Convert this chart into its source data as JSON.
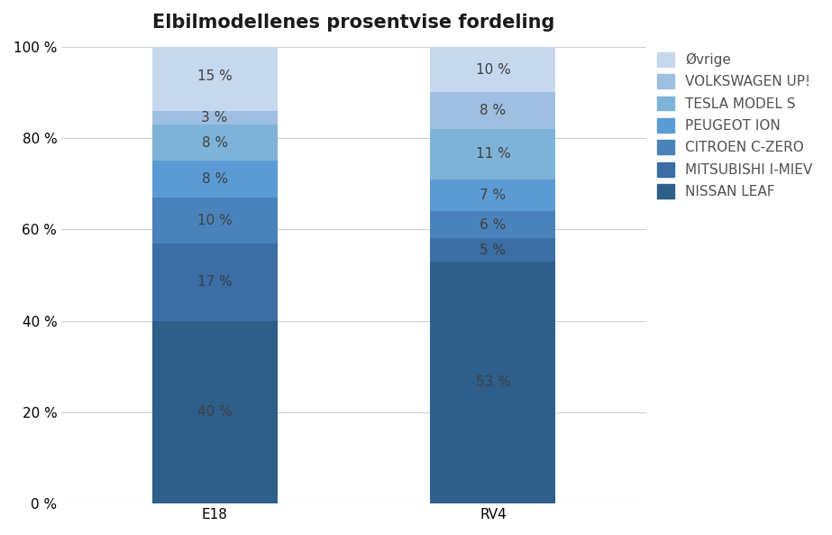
{
  "title": "Elbilmodellenes prosentvise fordeling",
  "categories": [
    "E18",
    "RV4"
  ],
  "series": [
    {
      "label": "NISSAN LEAF",
      "values": [
        40,
        53
      ],
      "color": "#2D5F8A"
    },
    {
      "label": "MITSUBISHI I-MIEV",
      "values": [
        17,
        5
      ],
      "color": "#3A6EA5"
    },
    {
      "label": "CITROEN C-ZERO",
      "values": [
        10,
        6
      ],
      "color": "#4A83BC"
    },
    {
      "label": "PEUGEOT ION",
      "values": [
        8,
        7
      ],
      "color": "#5B9BD5"
    },
    {
      "label": "TESLA MODEL S",
      "values": [
        8,
        11
      ],
      "color": "#7DB3D8"
    },
    {
      "label": "VOLKSWAGEN UP!",
      "values": [
        3,
        8
      ],
      "color": "#9FBFE0"
    },
    {
      "label": "Øvrige",
      "values": [
        15,
        10
      ],
      "color": "#C5D8EE"
    }
  ],
  "ylabel_ticks": [
    0,
    20,
    40,
    60,
    80,
    100
  ],
  "bar_width": 0.45,
  "title_fontsize": 15,
  "tick_fontsize": 11,
  "label_fontsize": 11,
  "legend_fontsize": 11,
  "text_color_dark": "#404040",
  "text_color_light": "#404040"
}
